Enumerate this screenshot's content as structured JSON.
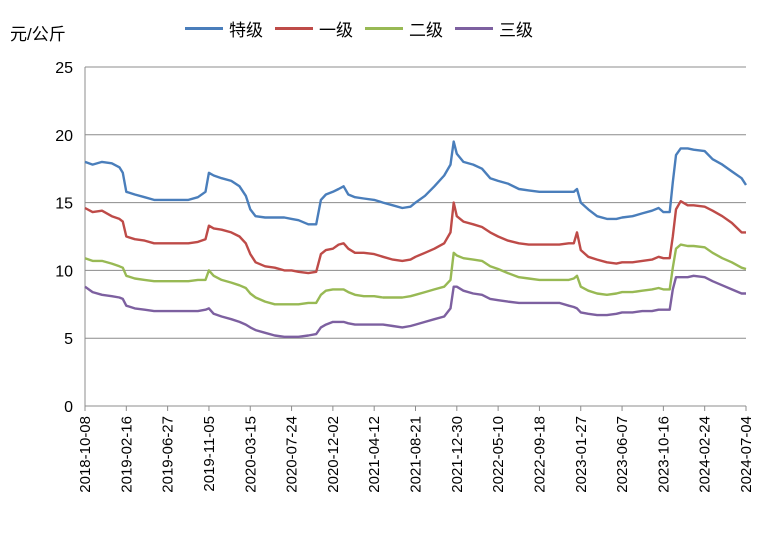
{
  "chart_data": {
    "type": "line",
    "ylabel": "元/公斤",
    "ylim": [
      0,
      25
    ],
    "yticks": [
      0,
      5,
      10,
      15,
      20,
      25
    ],
    "grid": "horizontal",
    "legend_position": "top",
    "x_ticks": [
      "2018-10-08",
      "2019-02-16",
      "2019-06-27",
      "2019-11-05",
      "2020-03-15",
      "2020-07-24",
      "2020-12-02",
      "2021-04-12",
      "2021-08-21",
      "2021-12-30",
      "2022-05-10",
      "2022-09-18",
      "2023-01-27",
      "2023-06-07",
      "2023-10-16",
      "2024-02-24",
      "2024-07-04"
    ],
    "series": [
      {
        "name": "特级",
        "color": "#4A7EBB",
        "x": [
          "2018-10-08",
          "2018-11-01",
          "2018-12-01",
          "2019-01-01",
          "2019-01-25",
          "2019-02-05",
          "2019-02-16",
          "2019-03-15",
          "2019-04-15",
          "2019-05-15",
          "2019-06-27",
          "2019-08-01",
          "2019-09-01",
          "2019-10-01",
          "2019-10-25",
          "2019-11-05",
          "2019-11-20",
          "2019-12-15",
          "2020-01-15",
          "2020-02-10",
          "2020-03-01",
          "2020-03-15",
          "2020-04-01",
          "2020-05-01",
          "2020-06-01",
          "2020-07-01",
          "2020-07-24",
          "2020-08-15",
          "2020-09-15",
          "2020-10-10",
          "2020-10-25",
          "2020-11-10",
          "2020-12-02",
          "2020-12-20",
          "2021-01-05",
          "2021-01-20",
          "2021-02-10",
          "2021-03-10",
          "2021-04-12",
          "2021-05-10",
          "2021-06-10",
          "2021-07-10",
          "2021-08-05",
          "2021-08-21",
          "2021-09-20",
          "2021-10-20",
          "2021-11-20",
          "2021-12-10",
          "2021-12-20",
          "2021-12-30",
          "2022-01-20",
          "2022-02-20",
          "2022-03-20",
          "2022-04-15",
          "2022-05-10",
          "2022-06-10",
          "2022-07-15",
          "2022-08-15",
          "2022-09-18",
          "2022-10-20",
          "2022-11-20",
          "2022-12-20",
          "2023-01-05",
          "2023-01-15",
          "2023-01-27",
          "2023-02-20",
          "2023-03-20",
          "2023-04-20",
          "2023-05-20",
          "2023-06-07",
          "2023-07-10",
          "2023-08-10",
          "2023-09-10",
          "2023-10-01",
          "2023-10-16",
          "2023-11-05",
          "2023-11-15",
          "2023-11-25",
          "2023-12-10",
          "2024-01-01",
          "2024-01-20",
          "2024-02-24",
          "2024-03-20",
          "2024-04-20",
          "2024-05-20",
          "2024-06-20",
          "2024-07-04"
        ],
        "values": [
          18.0,
          17.8,
          18.0,
          17.9,
          17.6,
          17.2,
          15.8,
          15.6,
          15.4,
          15.2,
          15.2,
          15.2,
          15.2,
          15.4,
          15.8,
          17.2,
          17.0,
          16.8,
          16.6,
          16.2,
          15.5,
          14.5,
          14.0,
          13.9,
          13.9,
          13.9,
          13.8,
          13.7,
          13.4,
          13.4,
          15.2,
          15.6,
          15.8,
          16.0,
          16.2,
          15.6,
          15.4,
          15.3,
          15.2,
          15.0,
          14.8,
          14.6,
          14.7,
          15.0,
          15.5,
          16.2,
          17.0,
          17.8,
          19.5,
          18.6,
          18.0,
          17.8,
          17.5,
          16.8,
          16.6,
          16.4,
          16.0,
          15.9,
          15.8,
          15.8,
          15.8,
          15.8,
          15.8,
          16.0,
          15.0,
          14.5,
          14.0,
          13.8,
          13.8,
          13.9,
          14.0,
          14.2,
          14.4,
          14.6,
          14.3,
          14.3,
          16.5,
          18.5,
          19.0,
          19.0,
          18.9,
          18.8,
          18.2,
          17.8,
          17.3,
          16.8,
          16.3
        ]
      },
      {
        "name": "一级",
        "color": "#BE4B48",
        "x": [
          "2018-10-08",
          "2018-11-01",
          "2018-12-01",
          "2019-01-01",
          "2019-01-25",
          "2019-02-05",
          "2019-02-16",
          "2019-03-15",
          "2019-04-15",
          "2019-05-15",
          "2019-06-27",
          "2019-08-01",
          "2019-09-01",
          "2019-10-01",
          "2019-10-25",
          "2019-11-05",
          "2019-11-20",
          "2019-12-15",
          "2020-01-15",
          "2020-02-10",
          "2020-03-01",
          "2020-03-15",
          "2020-04-01",
          "2020-05-01",
          "2020-06-01",
          "2020-07-01",
          "2020-07-24",
          "2020-08-15",
          "2020-09-15",
          "2020-10-10",
          "2020-10-25",
          "2020-11-10",
          "2020-12-02",
          "2020-12-20",
          "2021-01-05",
          "2021-01-20",
          "2021-02-10",
          "2021-03-10",
          "2021-04-12",
          "2021-05-10",
          "2021-06-10",
          "2021-07-10",
          "2021-08-05",
          "2021-08-21",
          "2021-09-20",
          "2021-10-20",
          "2021-11-20",
          "2021-12-10",
          "2021-12-20",
          "2021-12-30",
          "2022-01-20",
          "2022-02-20",
          "2022-03-20",
          "2022-04-15",
          "2022-05-10",
          "2022-06-10",
          "2022-07-15",
          "2022-08-15",
          "2022-09-18",
          "2022-10-20",
          "2022-11-20",
          "2022-12-20",
          "2023-01-05",
          "2023-01-15",
          "2023-01-27",
          "2023-02-20",
          "2023-03-20",
          "2023-04-20",
          "2023-05-20",
          "2023-06-07",
          "2023-07-10",
          "2023-08-10",
          "2023-09-10",
          "2023-10-01",
          "2023-10-16",
          "2023-11-05",
          "2023-11-15",
          "2023-11-25",
          "2023-12-10",
          "2024-01-01",
          "2024-01-20",
          "2024-02-24",
          "2024-03-20",
          "2024-04-20",
          "2024-05-20",
          "2024-06-20",
          "2024-07-04"
        ],
        "values": [
          14.6,
          14.3,
          14.4,
          14.0,
          13.8,
          13.6,
          12.5,
          12.3,
          12.2,
          12.0,
          12.0,
          12.0,
          12.0,
          12.1,
          12.3,
          13.3,
          13.1,
          13.0,
          12.8,
          12.5,
          12.0,
          11.2,
          10.6,
          10.3,
          10.2,
          10.0,
          10.0,
          9.9,
          9.8,
          9.9,
          11.2,
          11.5,
          11.6,
          11.9,
          12.0,
          11.6,
          11.3,
          11.3,
          11.2,
          11.0,
          10.8,
          10.7,
          10.8,
          11.0,
          11.3,
          11.6,
          12.0,
          12.8,
          15.0,
          14.0,
          13.6,
          13.4,
          13.2,
          12.8,
          12.5,
          12.2,
          12.0,
          11.9,
          11.9,
          11.9,
          11.9,
          12.0,
          12.0,
          12.8,
          11.5,
          11.0,
          10.8,
          10.6,
          10.5,
          10.6,
          10.6,
          10.7,
          10.8,
          11.0,
          10.9,
          10.9,
          12.5,
          14.5,
          15.1,
          14.8,
          14.8,
          14.7,
          14.4,
          14.0,
          13.5,
          12.8,
          12.8
        ]
      },
      {
        "name": "二级",
        "color": "#98B954",
        "x": [
          "2018-10-08",
          "2018-11-01",
          "2018-12-01",
          "2019-01-01",
          "2019-01-25",
          "2019-02-05",
          "2019-02-16",
          "2019-03-15",
          "2019-04-15",
          "2019-05-15",
          "2019-06-27",
          "2019-08-01",
          "2019-09-01",
          "2019-10-01",
          "2019-10-25",
          "2019-11-05",
          "2019-11-20",
          "2019-12-15",
          "2020-01-15",
          "2020-02-10",
          "2020-03-01",
          "2020-03-15",
          "2020-04-01",
          "2020-05-01",
          "2020-06-01",
          "2020-07-01",
          "2020-07-24",
          "2020-08-15",
          "2020-09-15",
          "2020-10-10",
          "2020-10-25",
          "2020-11-10",
          "2020-12-02",
          "2020-12-20",
          "2021-01-05",
          "2021-01-20",
          "2021-02-10",
          "2021-03-10",
          "2021-04-12",
          "2021-05-10",
          "2021-06-10",
          "2021-07-10",
          "2021-08-05",
          "2021-08-21",
          "2021-09-20",
          "2021-10-20",
          "2021-11-20",
          "2021-12-10",
          "2021-12-20",
          "2021-12-30",
          "2022-01-20",
          "2022-02-20",
          "2022-03-20",
          "2022-04-15",
          "2022-05-10",
          "2022-06-10",
          "2022-07-15",
          "2022-08-15",
          "2022-09-18",
          "2022-10-20",
          "2022-11-20",
          "2022-12-20",
          "2023-01-05",
          "2023-01-15",
          "2023-01-27",
          "2023-02-20",
          "2023-03-20",
          "2023-04-20",
          "2023-05-20",
          "2023-06-07",
          "2023-07-10",
          "2023-08-10",
          "2023-09-10",
          "2023-10-01",
          "2023-10-16",
          "2023-11-05",
          "2023-11-15",
          "2023-11-25",
          "2023-12-10",
          "2024-01-01",
          "2024-01-20",
          "2024-02-24",
          "2024-03-20",
          "2024-04-20",
          "2024-05-20",
          "2024-06-20",
          "2024-07-04"
        ],
        "values": [
          10.9,
          10.7,
          10.7,
          10.5,
          10.3,
          10.2,
          9.6,
          9.4,
          9.3,
          9.2,
          9.2,
          9.2,
          9.2,
          9.3,
          9.3,
          10.0,
          9.6,
          9.3,
          9.1,
          8.9,
          8.7,
          8.3,
          8.0,
          7.7,
          7.5,
          7.5,
          7.5,
          7.5,
          7.6,
          7.6,
          8.2,
          8.5,
          8.6,
          8.6,
          8.6,
          8.4,
          8.2,
          8.1,
          8.1,
          8.0,
          8.0,
          8.0,
          8.1,
          8.2,
          8.4,
          8.6,
          8.8,
          9.3,
          11.3,
          11.1,
          10.9,
          10.8,
          10.7,
          10.3,
          10.1,
          9.8,
          9.5,
          9.4,
          9.3,
          9.3,
          9.3,
          9.3,
          9.4,
          9.6,
          8.8,
          8.5,
          8.3,
          8.2,
          8.3,
          8.4,
          8.4,
          8.5,
          8.6,
          8.7,
          8.6,
          8.6,
          10.2,
          11.6,
          11.9,
          11.8,
          11.8,
          11.7,
          11.3,
          10.9,
          10.6,
          10.2,
          10.1
        ]
      },
      {
        "name": "三级",
        "color": "#7D60A0",
        "x": [
          "2018-10-08",
          "2018-11-01",
          "2018-12-01",
          "2019-01-01",
          "2019-01-25",
          "2019-02-05",
          "2019-02-16",
          "2019-03-15",
          "2019-04-15",
          "2019-05-15",
          "2019-06-27",
          "2019-08-01",
          "2019-09-01",
          "2019-10-01",
          "2019-10-25",
          "2019-11-05",
          "2019-11-20",
          "2019-12-15",
          "2020-01-15",
          "2020-02-10",
          "2020-03-01",
          "2020-03-15",
          "2020-04-01",
          "2020-05-01",
          "2020-06-01",
          "2020-07-01",
          "2020-07-24",
          "2020-08-15",
          "2020-09-15",
          "2020-10-10",
          "2020-10-25",
          "2020-11-10",
          "2020-12-02",
          "2020-12-20",
          "2021-01-05",
          "2021-01-20",
          "2021-02-10",
          "2021-03-10",
          "2021-04-12",
          "2021-05-10",
          "2021-06-10",
          "2021-07-10",
          "2021-08-05",
          "2021-08-21",
          "2021-09-20",
          "2021-10-20",
          "2021-11-20",
          "2021-12-10",
          "2021-12-20",
          "2021-12-30",
          "2022-01-20",
          "2022-02-20",
          "2022-03-20",
          "2022-04-15",
          "2022-05-10",
          "2022-06-10",
          "2022-07-15",
          "2022-08-15",
          "2022-09-18",
          "2022-10-20",
          "2022-11-20",
          "2022-12-20",
          "2023-01-05",
          "2023-01-15",
          "2023-01-27",
          "2023-02-20",
          "2023-03-20",
          "2023-04-20",
          "2023-05-20",
          "2023-06-07",
          "2023-07-10",
          "2023-08-10",
          "2023-09-10",
          "2023-10-01",
          "2023-10-16",
          "2023-11-05",
          "2023-11-15",
          "2023-11-25",
          "2023-12-10",
          "2024-01-01",
          "2024-01-20",
          "2024-02-24",
          "2024-03-20",
          "2024-04-20",
          "2024-05-20",
          "2024-06-20",
          "2024-07-04"
        ],
        "values": [
          8.8,
          8.4,
          8.2,
          8.1,
          8.0,
          7.9,
          7.4,
          7.2,
          7.1,
          7.0,
          7.0,
          7.0,
          7.0,
          7.0,
          7.1,
          7.2,
          6.8,
          6.6,
          6.4,
          6.2,
          6.0,
          5.8,
          5.6,
          5.4,
          5.2,
          5.1,
          5.1,
          5.1,
          5.2,
          5.3,
          5.8,
          6.0,
          6.2,
          6.2,
          6.2,
          6.1,
          6.0,
          6.0,
          6.0,
          6.0,
          5.9,
          5.8,
          5.9,
          6.0,
          6.2,
          6.4,
          6.6,
          7.2,
          8.8,
          8.8,
          8.5,
          8.3,
          8.2,
          7.9,
          7.8,
          7.7,
          7.6,
          7.6,
          7.6,
          7.6,
          7.6,
          7.4,
          7.3,
          7.2,
          6.9,
          6.8,
          6.7,
          6.7,
          6.8,
          6.9,
          6.9,
          7.0,
          7.0,
          7.1,
          7.1,
          7.1,
          8.6,
          9.5,
          9.5,
          9.5,
          9.6,
          9.5,
          9.2,
          8.9,
          8.6,
          8.3,
          8.3
        ]
      }
    ]
  }
}
